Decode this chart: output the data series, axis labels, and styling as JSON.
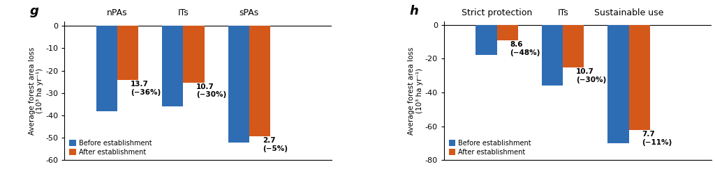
{
  "panel_g": {
    "label": "g",
    "categories": [
      "nPAs",
      "ITs",
      "sPAs"
    ],
    "before": [
      -38.0,
      -36.0,
      -52.0
    ],
    "after": [
      -24.3,
      -25.3,
      -49.3
    ],
    "annotations": [
      "13.7\n(−36%)",
      "10.7\n(−30%)",
      "2.7\n(−5%)"
    ],
    "ylim": [
      -60,
      2
    ],
    "yticks": [
      0,
      -10,
      -20,
      -30,
      -40,
      -50,
      -60
    ],
    "ylabel": "Average forest area loss\n(10³ ha yr⁻¹)"
  },
  "panel_h": {
    "label": "h",
    "categories": [
      "Strict protection",
      "ITs",
      "Sustainable use"
    ],
    "before": [
      -18.0,
      -36.0,
      -70.0
    ],
    "after": [
      -9.4,
      -25.3,
      -62.3
    ],
    "annotations": [
      "8.6\n(−48%)",
      "10.7\n(−30%)",
      "7.7\n(−11%)"
    ],
    "ylim": [
      -80,
      2
    ],
    "yticks": [
      0,
      -20,
      -40,
      -60,
      -80
    ],
    "ylabel": "Average forest area loss\n(10³ ha yr⁻¹)"
  },
  "color_before": "#2E6DB4",
  "color_after": "#D4581A",
  "legend_labels": [
    "Before establishment",
    "After establishment"
  ],
  "bar_width": 0.32,
  "annotation_fontsize": 7.5,
  "tick_fontsize": 8,
  "ylabel_fontsize": 7.5,
  "panel_label_fontsize": 13,
  "category_fontsize": 9
}
